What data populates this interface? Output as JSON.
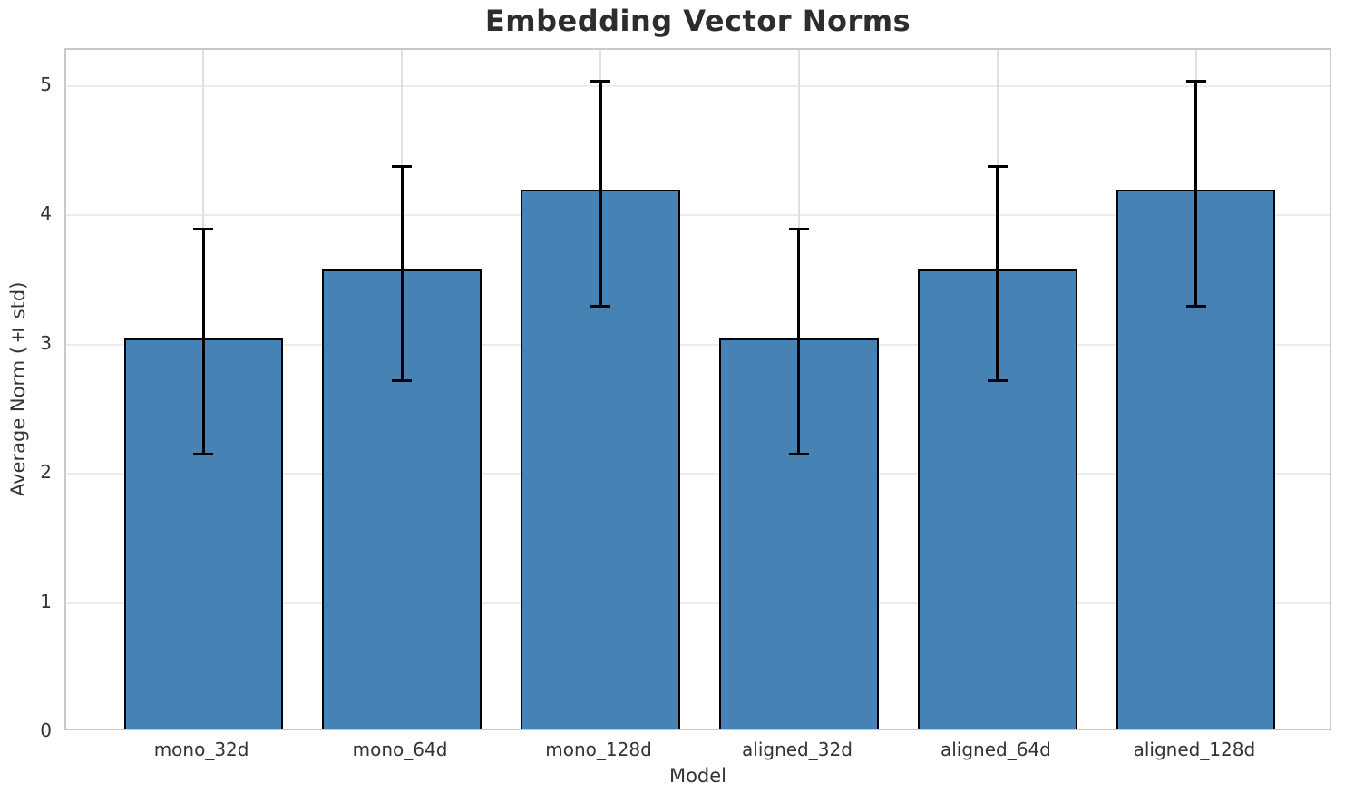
{
  "chart_data": {
    "type": "bar",
    "title": "Embedding Vector Norms",
    "xlabel": "Model",
    "ylabel": "Average Norm (± std)",
    "categories": [
      "mono_32d",
      "mono_64d",
      "mono_128d",
      "aligned_32d",
      "aligned_64d",
      "aligned_128d"
    ],
    "values": [
      3.02,
      3.55,
      4.17,
      3.02,
      3.55,
      4.17
    ],
    "errors": [
      0.87,
      0.83,
      0.87,
      0.87,
      0.83,
      0.87
    ],
    "yticks": [
      0,
      1,
      2,
      3,
      4,
      5
    ],
    "ylim": [
      0,
      5.28
    ],
    "xlim": [
      -0.69,
      5.69
    ],
    "bar_width": 0.8,
    "grid": "on",
    "legend": "none",
    "colors": {
      "bar_fill": "#4682b4",
      "bar_edge": "#000000",
      "error_bar": "#000000",
      "grid_h": "#ededed",
      "grid_v": "#e0e0e0",
      "spine": "#c9c9c9",
      "text": "#333333",
      "title_text": "#2d2d2d",
      "background": "#ffffff"
    }
  }
}
